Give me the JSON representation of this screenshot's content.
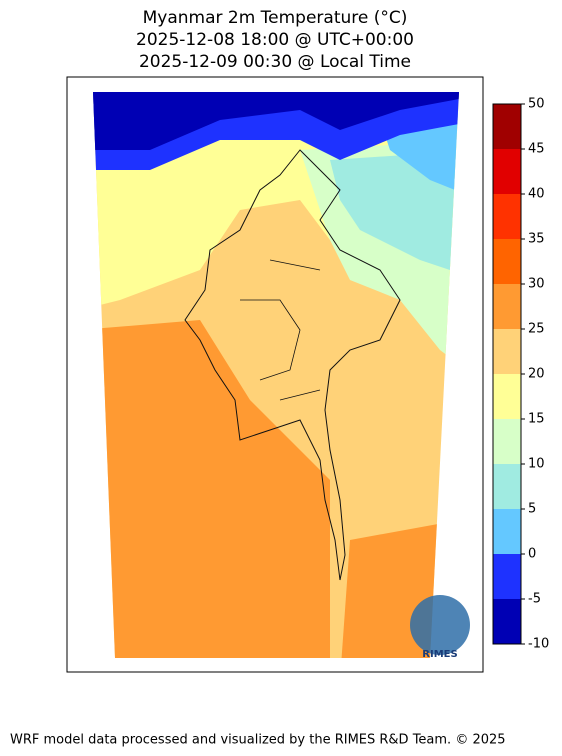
{
  "title": [
    "Myanmar 2m Temperature (°C)",
    "2025-12-08 18:00 @ UTC+00:00",
    "2025-12-09 00:30 @ Local Time"
  ],
  "colorbar": {
    "lim": [
      -10,
      50
    ],
    "ticks": [
      -10,
      -5,
      0,
      5,
      10,
      15,
      20,
      25,
      30,
      35,
      40,
      45,
      50
    ],
    "colors": [
      "#0000b4",
      "#1e32ff",
      "#64c8ff",
      "#a0ebe1",
      "#d7ffc8",
      "#ffff96",
      "#ffd278",
      "#ff9a32",
      "#ff6400",
      "#ff3200",
      "#e10000",
      "#a00000"
    ]
  },
  "logo": "RIMES",
  "footer": "WRF model data processed and visualized by the RIMES R&D Team. © 2025"
}
